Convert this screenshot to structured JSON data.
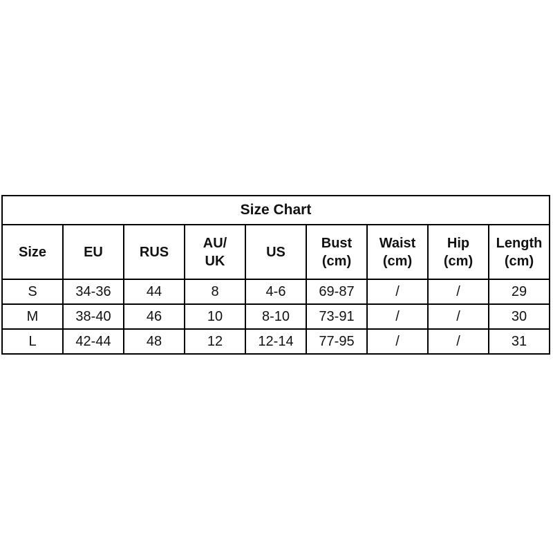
{
  "chart_data": {
    "type": "table",
    "title": "Size Chart",
    "columns": [
      "Size",
      "EU",
      "RUS",
      "AU/UK",
      "US",
      "Bust (cm)",
      "Waist (cm)",
      "Hip (cm)",
      "Length (cm)"
    ],
    "rows": [
      [
        "S",
        "34-36",
        "44",
        "8",
        "4-6",
        "69-87",
        "/",
        "/",
        "29"
      ],
      [
        "M",
        "38-40",
        "46",
        "10",
        "8-10",
        "73-91",
        "/",
        "/",
        "30"
      ],
      [
        "L",
        "42-44",
        "48",
        "12",
        "12-14",
        "77-95",
        "/",
        "/",
        "31"
      ]
    ],
    "layout": "title row spans all 9 columns; header row has two-line labels; grid lines on all cells"
  },
  "table": {
    "title": "Size Chart",
    "headers": [
      "Size",
      "EU",
      "RUS",
      "AU/\nUK",
      "US",
      "Bust\n(cm)",
      "Waist\n(cm)",
      "Hip\n(cm)",
      "Length\n(cm)"
    ],
    "rows": [
      {
        "cells": [
          "S",
          "34-36",
          "44",
          "8",
          "4-6",
          "69-87",
          "/",
          "/",
          "29"
        ]
      },
      {
        "cells": [
          "M",
          "38-40",
          "46",
          "10",
          "8-10",
          "73-91",
          "/",
          "/",
          "30"
        ]
      },
      {
        "cells": [
          "L",
          "42-44",
          "48",
          "12",
          "12-14",
          "77-95",
          "/",
          "/",
          "31"
        ]
      }
    ],
    "colors": {
      "border": "#000000",
      "text": "#111111",
      "background": "#ffffff"
    }
  }
}
